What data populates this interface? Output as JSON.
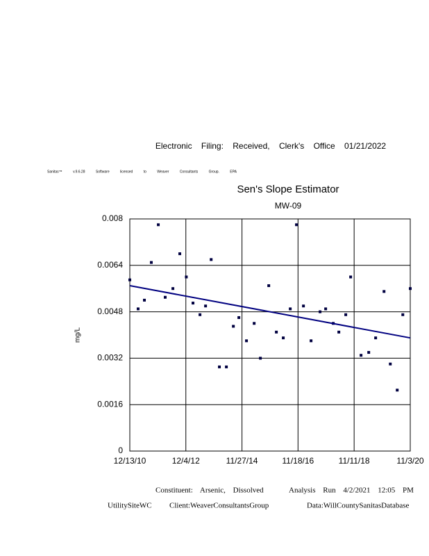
{
  "header": {
    "filing": "Electronic Filing: Received, Clerk's Office 01/21/2022",
    "software": "Sanitas™ v.9.6.28 Software licensed to Weaver Consultants Group. EPA"
  },
  "chart_data": {
    "type": "scatter",
    "title": "Sen's Slope Estimator",
    "subtitle": "MW-09",
    "y_label": "mg/L",
    "color": "#000040",
    "grid": true,
    "x": [
      "2010-12-13",
      "2011-03-30",
      "2011-06-19",
      "2011-09-16",
      "2011-12-15",
      "2012-03-13",
      "2012-06-20",
      "2012-09-17",
      "2012-12-10",
      "2013-03-06",
      "2013-06-04",
      "2013-08-15",
      "2013-10-26",
      "2014-02-09",
      "2014-05-10",
      "2014-08-08",
      "2014-10-18",
      "2015-01-24",
      "2015-05-03",
      "2015-07-22",
      "2015-11-07",
      "2016-02-13",
      "2016-05-12",
      "2016-08-10",
      "2016-10-29",
      "2017-01-27",
      "2017-05-05",
      "2017-08-29",
      "2017-11-09",
      "2018-02-15",
      "2018-04-28",
      "2018-07-26",
      "2018-09-27",
      "2019-02-08",
      "2019-05-18",
      "2019-08-15",
      "2019-12-01",
      "2020-02-20",
      "2020-05-19",
      "2020-07-30",
      "2020-11-03"
    ],
    "values": [
      0.0059,
      0.0049,
      0.0052,
      0.0065,
      0.0078,
      0.0053,
      0.0056,
      0.0068,
      0.006,
      0.0051,
      0.0047,
      0.005,
      0.0066,
      0.0029,
      0.0029,
      0.0043,
      0.0046,
      0.0038,
      0.0044,
      0.0032,
      0.0057,
      0.0041,
      0.0039,
      0.0049,
      0.0078,
      0.005,
      0.0038,
      0.0048,
      0.0049,
      0.0044,
      0.0041,
      0.0047,
      0.006,
      0.0033,
      0.0034,
      0.0039,
      0.0055,
      0.003,
      0.0021,
      0.0047,
      0.0056
    ],
    "trend_line": {
      "x": [
        "2010-12-13",
        "2020-11-03"
      ],
      "values": [
        0.0057,
        0.0039
      ],
      "color": "#000080"
    },
    "xlim": [
      "2010-12-13",
      "2020-11-03"
    ],
    "xticks": [
      {
        "value": "2010-12-13",
        "label": "12/13/10"
      },
      {
        "value": "2012-12-04",
        "label": "12/4/12"
      },
      {
        "value": "2014-11-27",
        "label": "11/27/14"
      },
      {
        "value": "2016-11-18",
        "label": "11/18/16"
      },
      {
        "value": "2018-11-11",
        "label": "11/11/18"
      },
      {
        "value": "2020-11-03",
        "label": "11/3/20"
      }
    ],
    "ylim": [
      0,
      0.008
    ],
    "yticks": [
      0,
      0.0016,
      0.0032,
      0.0048,
      0.0064,
      0.008
    ]
  },
  "footer": {
    "constituent": "Constituent: Arsenic, Dissolved",
    "run": "Analysis Run 4/2/2021 12:05 PM",
    "site": "UtilitySiteWC",
    "client": "Client:WeaverConsultantsGroup",
    "data": "Data:WillCountySanitasDatabase"
  }
}
